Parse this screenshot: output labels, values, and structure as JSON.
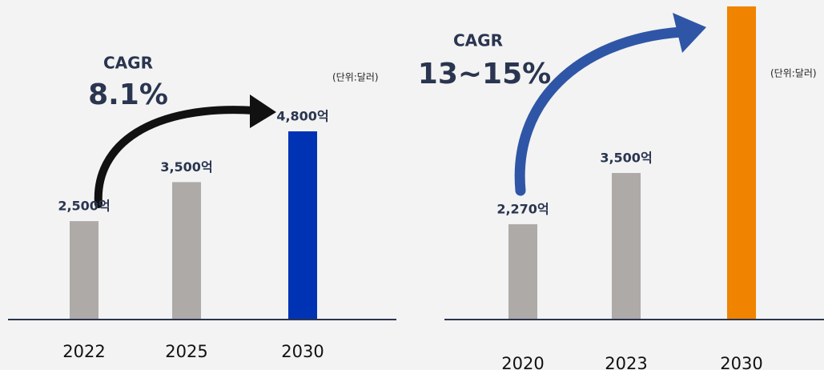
{
  "chart_data": [
    {
      "type": "bar",
      "title": "CAGR",
      "subtitle": "8.1%",
      "unit": "(단위:달러)",
      "categories": [
        "2022",
        "2025",
        "2030"
      ],
      "values": [
        2500,
        3500,
        4800
      ],
      "value_labels": [
        "2,500억",
        "3,500억",
        "4,800억"
      ],
      "colors": [
        "#aeaaa8",
        "#aeaaa8",
        "#0033b3"
      ],
      "ylim": [
        0,
        8000
      ]
    },
    {
      "type": "bar",
      "title": "CAGR",
      "subtitle": "13~15%",
      "unit": "(단위:달러)",
      "categories": [
        "2020",
        "2023",
        "2030"
      ],
      "values": [
        2270,
        3500,
        7500
      ],
      "value_labels": [
        "2,270억",
        "3,500억",
        null
      ],
      "colors": [
        "#aeaaa8",
        "#aeaaa8",
        "#f08300"
      ],
      "ylim": [
        0,
        7500
      ]
    }
  ]
}
